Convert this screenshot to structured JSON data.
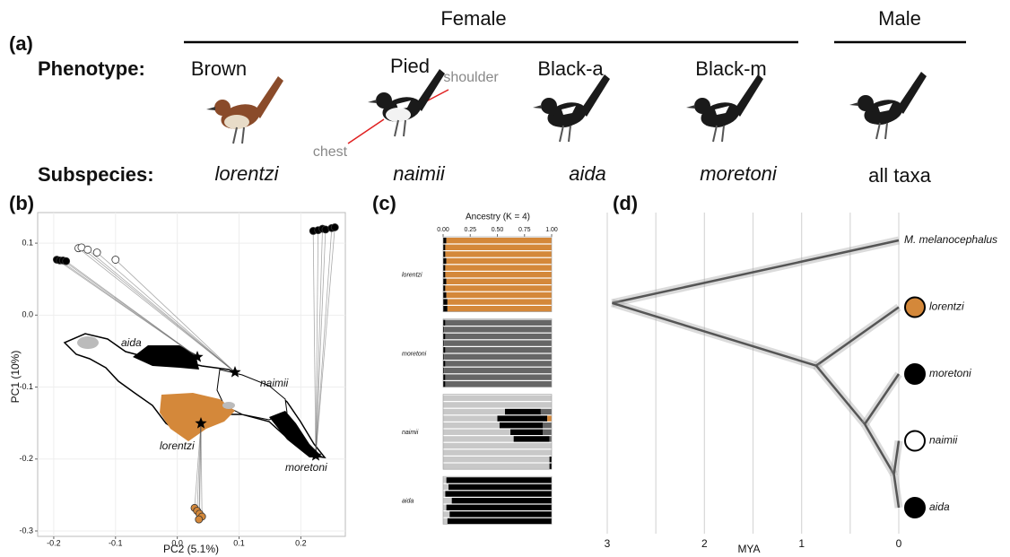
{
  "panel_a": {
    "label": "(a)",
    "female": "Female",
    "male": "Male",
    "phenotype_heading": "Phenotype:",
    "subspecies_heading": "Subspecies:",
    "phenotypes": [
      "Brown",
      "Pied",
      "Black-a",
      "Black-m"
    ],
    "subspecies": [
      "lorentzi",
      "naimii",
      "aida",
      "moretoni",
      "all taxa"
    ],
    "annotations": {
      "shoulder": "shoulder",
      "chest": "chest"
    }
  },
  "panel_b": {
    "label": "(b)",
    "xlabel": "PC2 (5.1%)",
    "ylabel": "PC1 (10%)",
    "xlim": [
      -0.226,
      0.272
    ],
    "ylim": [
      -0.3075,
      0.1425
    ],
    "xticks": [
      -0.2,
      -0.1,
      {
        "value": 0,
        "label": "0.0"
      },
      0.1,
      0.2
    ],
    "yticks": [
      0.1,
      {
        "value": 0,
        "label": "0.0"
      },
      -0.1,
      -0.2,
      -0.3
    ],
    "map_labels": [
      "aida",
      "naimii",
      "lorentzi",
      "moretoni"
    ],
    "series": [
      {
        "color": "#000000",
        "x": [
          -0.195,
          -0.19,
          -0.185,
          -0.18
        ],
        "y": [
          0.077,
          0.076,
          0.076,
          0.075
        ]
      },
      {
        "color": "#ffffff",
        "x": [
          -0.16,
          -0.155,
          -0.145,
          -0.13,
          -0.1
        ],
        "y": [
          0.093,
          0.094,
          0.091,
          0.087,
          0.077
        ]
      },
      {
        "color": "#000000",
        "x": [
          0.22,
          0.228,
          0.235,
          0.24,
          0.25,
          0.255
        ],
        "y": [
          0.117,
          0.118,
          0.12,
          0.119,
          0.121,
          0.122
        ]
      },
      {
        "color": "#d4883a",
        "x": [
          0.028,
          0.032,
          0.036,
          0.04,
          0.035
        ],
        "y": [
          -0.268,
          -0.272,
          -0.276,
          -0.28,
          -0.284
        ]
      }
    ]
  },
  "panel_c": {
    "label": "(c)",
    "title": "Ancestry (K = 4)",
    "xlim": [
      0,
      1
    ],
    "xticks": [
      {
        "value": 0,
        "label": "0.00"
      },
      {
        "value": 0.25,
        "label": "0.25"
      },
      {
        "value": 0.5,
        "label": "0.50"
      },
      {
        "value": 0.75,
        "label": "0.75"
      },
      {
        "value": 1,
        "label": "1.00"
      }
    ],
    "colors": [
      "#c8c8c8",
      "#000000",
      "#d4883a",
      "#666666"
    ],
    "groups": [
      {
        "label": "lorentzi",
        "rows": [
          [
            0,
            0.03,
            0.97,
            0
          ],
          [
            0,
            0.02,
            0.98,
            0
          ],
          [
            0,
            0.02,
            0.98,
            0
          ],
          [
            0,
            0.03,
            0.97,
            0
          ],
          [
            0,
            0.02,
            0.98,
            0
          ],
          [
            0,
            0.02,
            0.98,
            0
          ],
          [
            0,
            0.03,
            0.97,
            0
          ],
          [
            0,
            0.02,
            0.98,
            0
          ],
          [
            0,
            0.03,
            0.97,
            0
          ],
          [
            0,
            0.04,
            0.96,
            0
          ],
          [
            0,
            0.04,
            0.96,
            0
          ]
        ]
      },
      {
        "label": "moretoni",
        "rows": [
          [
            0,
            0.02,
            0,
            0.98
          ],
          [
            0,
            0.01,
            0,
            0.99
          ],
          [
            0,
            0.02,
            0,
            0.98
          ],
          [
            0,
            0.01,
            0,
            0.99
          ],
          [
            0,
            0.02,
            0,
            0.98
          ],
          [
            0,
            0.01,
            0,
            0.99
          ],
          [
            0,
            0.02,
            0,
            0.98
          ],
          [
            0,
            0.01,
            0,
            0.99
          ],
          [
            0,
            0.02,
            0,
            0.98
          ],
          [
            0,
            0.02,
            0,
            0.98
          ]
        ]
      },
      {
        "label": "naimii",
        "rows": [
          [
            1,
            0,
            0,
            0
          ],
          [
            1,
            0,
            0,
            0
          ],
          [
            0.57,
            0.33,
            0,
            0.1
          ],
          [
            0.5,
            0.46,
            0.04,
            0
          ],
          [
            0.52,
            0.4,
            0,
            0.08
          ],
          [
            0.62,
            0.3,
            0,
            0.08
          ],
          [
            0.65,
            0.33,
            0,
            0.02
          ],
          [
            1,
            0,
            0,
            0
          ],
          [
            1,
            0,
            0,
            0
          ],
          [
            0.98,
            0.02,
            0,
            0
          ],
          [
            0.98,
            0.02,
            0,
            0
          ]
        ]
      },
      {
        "label": "aida",
        "rows": [
          [
            0.03,
            0.97,
            0,
            0
          ],
          [
            0.05,
            0.95,
            0,
            0
          ],
          [
            0.02,
            0.98,
            0,
            0
          ],
          [
            0.08,
            0.92,
            0,
            0
          ],
          [
            0.03,
            0.97,
            0,
            0
          ],
          [
            0.06,
            0.94,
            0,
            0
          ],
          [
            0.04,
            0.96,
            0,
            0
          ]
        ]
      }
    ]
  },
  "panel_d": {
    "label": "(d)",
    "xlabel": "MYA",
    "xlim": [
      3,
      0
    ],
    "xticks": [
      3,
      2,
      1,
      0
    ],
    "grid": [
      3,
      2.5,
      2,
      1.5,
      1,
      0.5,
      0
    ],
    "tips": [
      {
        "label": "M. melanocephalus"
      },
      {
        "label": "lorentzi",
        "marker": "#d4883a"
      },
      {
        "label": "moretoni",
        "marker": "#000000"
      },
      {
        "label": "naimii",
        "marker": "#ffffff"
      },
      {
        "label": "aida",
        "marker": "#000000"
      }
    ],
    "nodes": [
      {
        "age": 2.95,
        "children": [
          0,
          6
        ]
      },
      {
        "age": 0.85,
        "children": [
          1,
          7
        ]
      },
      {
        "age": 0.35,
        "children": [
          2,
          8
        ]
      },
      {
        "age": 0.05,
        "children": [
          3,
          4
        ]
      }
    ]
  }
}
